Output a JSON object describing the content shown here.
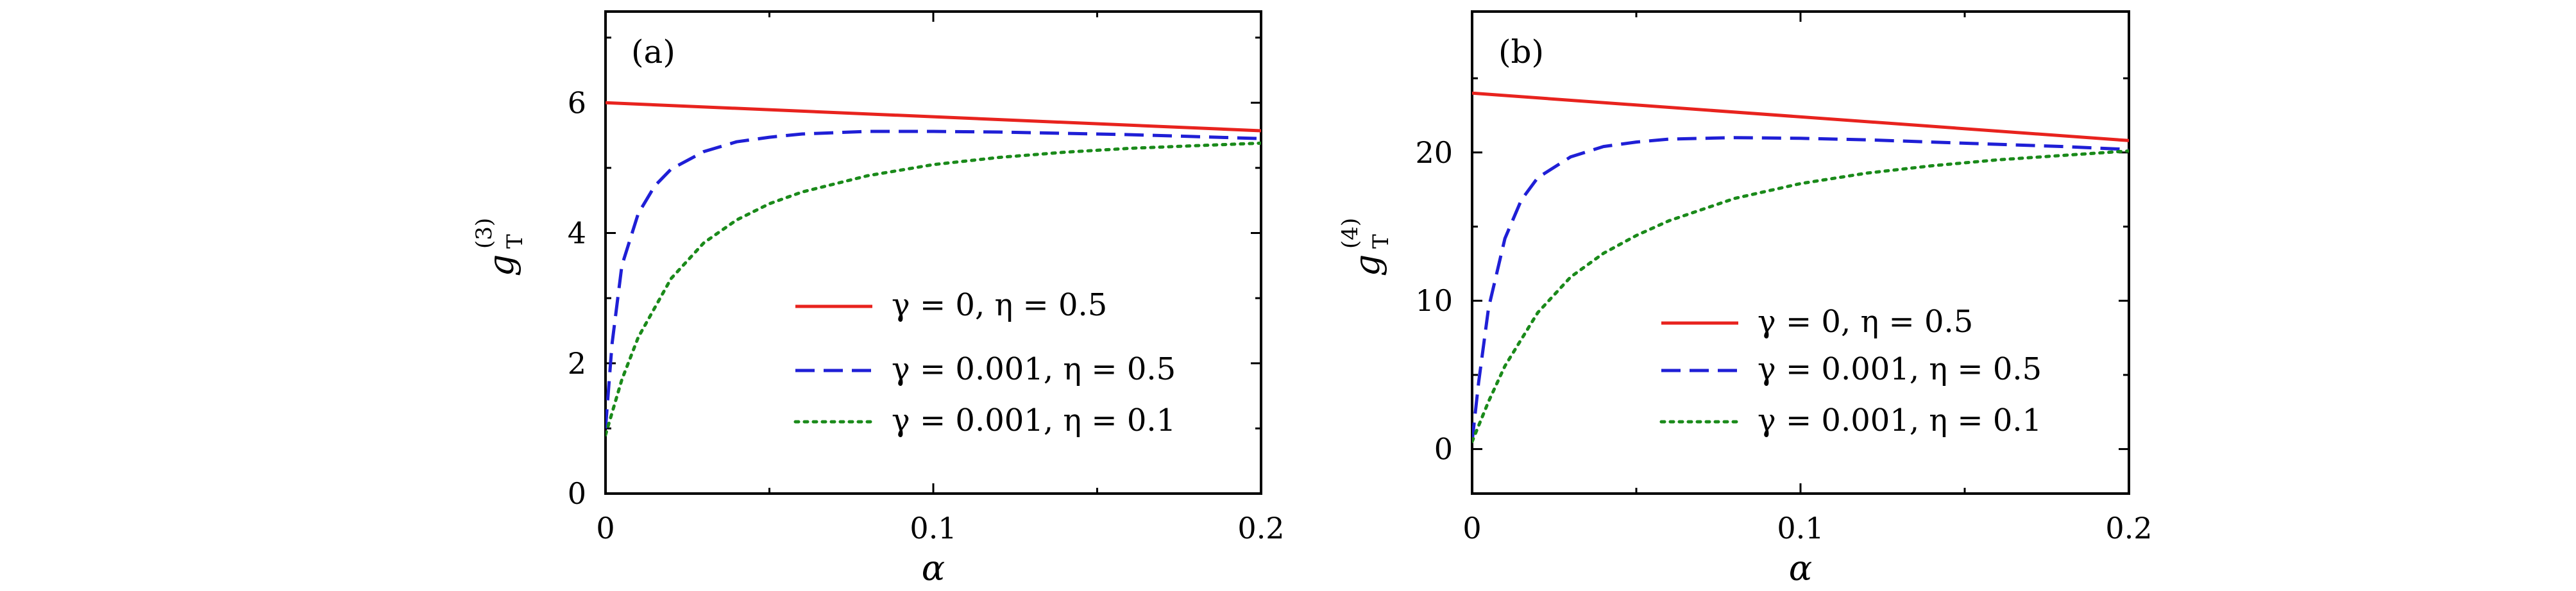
{
  "chart_data": [
    {
      "type": "line",
      "panel": "(a)",
      "xlabel": "α",
      "ylabel": "g",
      "ylabel_sub": "T",
      "ylabel_sup": "(3)",
      "xlim": [
        0,
        0.2
      ],
      "ylim": [
        0,
        7.4
      ],
      "xticks": [
        0,
        0.1,
        0.2
      ],
      "xtick_labels": [
        "0",
        "0.1",
        "0.2"
      ],
      "yticks": [
        0,
        2,
        4,
        6
      ],
      "ytick_labels": [
        "0",
        "2",
        "4",
        "6"
      ],
      "grid": false,
      "legend_position": "lower-right",
      "series": [
        {
          "name": "γ = 0, η = 0.5",
          "color": "#e8231e",
          "dash": "solid",
          "x": [
            0,
            0.2
          ],
          "y": [
            6.0,
            5.57
          ]
        },
        {
          "name": "γ = 0.001, η = 0.5",
          "color": "#1f1fd6",
          "dash": "dashed",
          "x": [
            0,
            0.002,
            0.005,
            0.01,
            0.015,
            0.02,
            0.03,
            0.04,
            0.05,
            0.06,
            0.08,
            0.1,
            0.12,
            0.14,
            0.16,
            0.18,
            0.2
          ],
          "y": [
            1.0,
            2.3,
            3.5,
            4.3,
            4.72,
            4.98,
            5.25,
            5.4,
            5.47,
            5.52,
            5.56,
            5.56,
            5.55,
            5.53,
            5.51,
            5.48,
            5.45
          ]
        },
        {
          "name": "γ = 0.001, η = 0.1",
          "color": "#1a8a1a",
          "dash": "dotted",
          "x": [
            0,
            0.005,
            0.01,
            0.02,
            0.03,
            0.04,
            0.05,
            0.06,
            0.08,
            0.1,
            0.12,
            0.14,
            0.16,
            0.18,
            0.2
          ],
          "y": [
            0.9,
            1.75,
            2.4,
            3.3,
            3.85,
            4.2,
            4.45,
            4.63,
            4.88,
            5.05,
            5.16,
            5.24,
            5.3,
            5.34,
            5.38
          ]
        }
      ]
    },
    {
      "type": "line",
      "panel": "(b)",
      "xlabel": "α",
      "ylabel": "g",
      "ylabel_sub": "T",
      "ylabel_sup": "(4)",
      "xlim": [
        0,
        0.2
      ],
      "ylim": [
        -3,
        29.5
      ],
      "xticks": [
        0,
        0.1,
        0.2
      ],
      "xtick_labels": [
        "0",
        "0.1",
        "0.2"
      ],
      "yticks": [
        0,
        10,
        20
      ],
      "ytick_labels": [
        "0",
        "10",
        "20"
      ],
      "grid": false,
      "legend_position": "lower-right",
      "series": [
        {
          "name": "γ = 0, η = 0.5",
          "color": "#e8231e",
          "dash": "solid",
          "x": [
            0,
            0.2
          ],
          "y": [
            24.0,
            20.8
          ]
        },
        {
          "name": "γ = 0.001, η = 0.5",
          "color": "#1f1fd6",
          "dash": "dashed",
          "x": [
            0,
            0.002,
            0.005,
            0.01,
            0.015,
            0.02,
            0.03,
            0.04,
            0.05,
            0.06,
            0.08,
            0.1,
            0.12,
            0.14,
            0.16,
            0.18,
            0.2
          ],
          "y": [
            0.5,
            4.5,
            9.5,
            14.2,
            16.8,
            18.3,
            19.7,
            20.4,
            20.7,
            20.9,
            21.0,
            20.95,
            20.85,
            20.7,
            20.55,
            20.4,
            20.2
          ]
        },
        {
          "name": "γ = 0.001, η = 0.1",
          "color": "#1a8a1a",
          "dash": "dotted",
          "x": [
            0,
            0.005,
            0.01,
            0.02,
            0.03,
            0.04,
            0.05,
            0.06,
            0.08,
            0.1,
            0.12,
            0.14,
            0.16,
            0.18,
            0.2
          ],
          "y": [
            0.5,
            3.2,
            5.6,
            9.2,
            11.6,
            13.2,
            14.4,
            15.4,
            16.9,
            17.9,
            18.6,
            19.1,
            19.5,
            19.8,
            20.1
          ]
        }
      ]
    }
  ]
}
